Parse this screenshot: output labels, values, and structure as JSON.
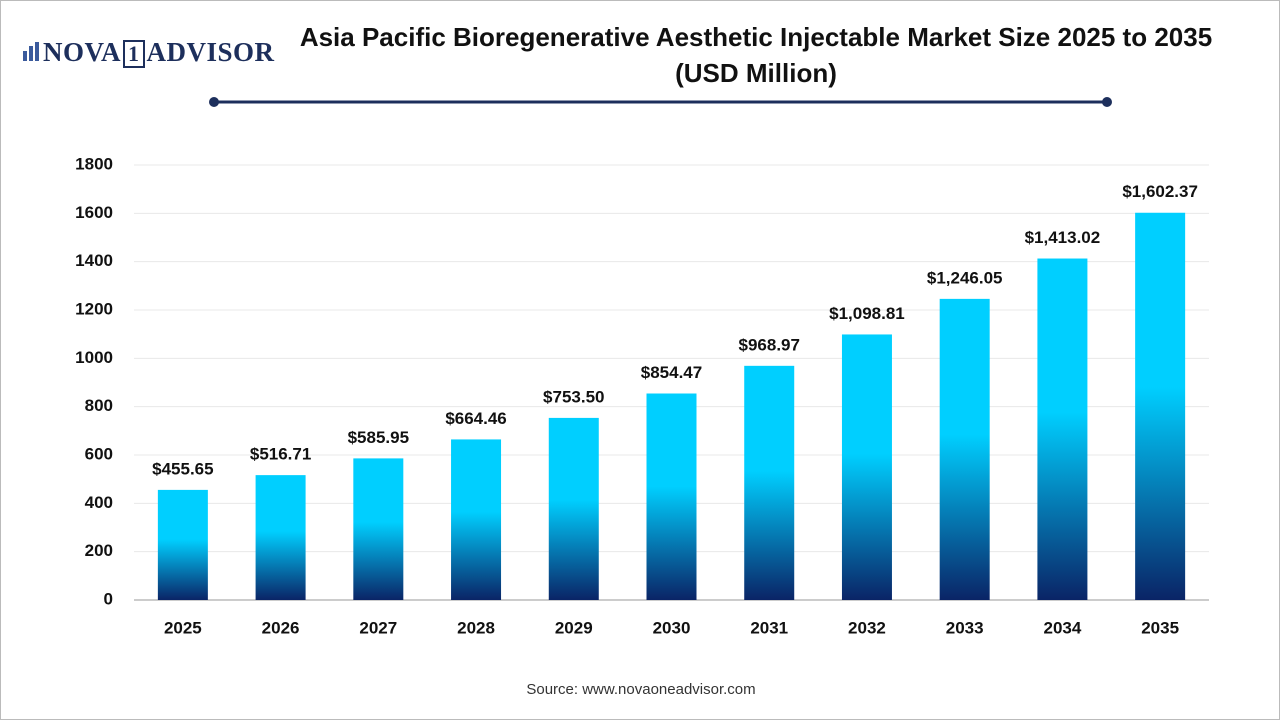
{
  "logo": {
    "left": "NOVA",
    "mark": "1",
    "right": "ADVISOR"
  },
  "chart_data": {
    "type": "bar",
    "title": "Asia Pacific Bioregenerative Aesthetic Injectable Market Size 2025 to 2035 (USD Million)",
    "categories": [
      "2025",
      "2026",
      "2027",
      "2028",
      "2029",
      "2030",
      "2031",
      "2032",
      "2033",
      "2034",
      "2035"
    ],
    "values": [
      455.65,
      516.71,
      585.95,
      664.46,
      753.5,
      854.47,
      968.97,
      1098.81,
      1246.05,
      1413.02,
      1602.37
    ],
    "value_labels": [
      "$455.65",
      "$516.71",
      "$585.95",
      "$664.46",
      "$753.50",
      "$854.47",
      "$968.97",
      "$1,098.81",
      "$1,246.05",
      "$1,413.02",
      "$1,602.37"
    ],
    "gradient": {
      "top": "#00cfff",
      "bottom": "#0a2466"
    },
    "ylim": [
      0,
      1800
    ],
    "yticks": [
      0,
      200,
      400,
      600,
      800,
      1000,
      1200,
      1400,
      1600,
      1800
    ],
    "grid": true,
    "source": "Source: www.novaoneadvisor.com"
  }
}
